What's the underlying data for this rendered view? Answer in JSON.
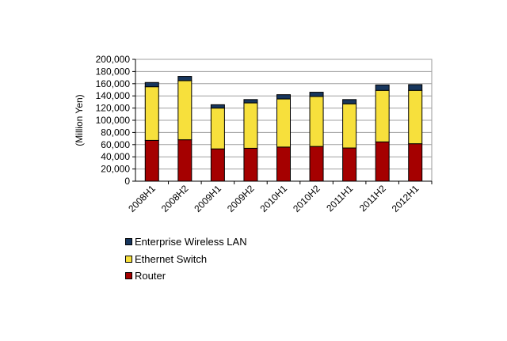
{
  "chart_data": {
    "type": "bar",
    "stacked": true,
    "title": "",
    "xlabel": "",
    "ylabel": "(Million Yen)",
    "ylim": [
      0,
      200000
    ],
    "yticks": [
      "0",
      "20,000",
      "40,000",
      "60,000",
      "80,000",
      "100,000",
      "120,000",
      "140,000",
      "160,000",
      "180,000",
      "200,000"
    ],
    "grid": true,
    "legend_position": "bottom-left",
    "categories": [
      "2008H1",
      "2008H2",
      "2009H1",
      "2009H2",
      "2010H1",
      "2010H2",
      "2011H1",
      "2011H2",
      "2012H1"
    ],
    "series": [
      {
        "name": "Router",
        "color": "#a50000",
        "values": [
          67000,
          68000,
          53000,
          54000,
          56000,
          57000,
          54500,
          64500,
          61500
        ]
      },
      {
        "name": "Ethernet Switch",
        "color": "#f7e03c",
        "values": [
          88000,
          97000,
          67000,
          74500,
          79000,
          82000,
          72500,
          84500,
          87500
        ]
      },
      {
        "name": "Enterprise Wireless LAN",
        "color": "#17365d",
        "values": [
          7000,
          7000,
          5500,
          5500,
          7000,
          7000,
          7000,
          9000,
          9500
        ]
      }
    ]
  }
}
